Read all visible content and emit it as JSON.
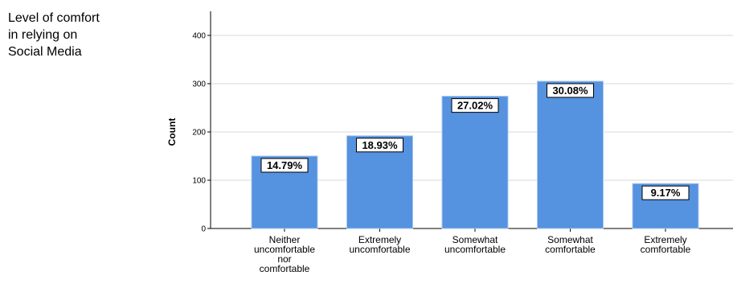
{
  "chart_data": {
    "type": "bar",
    "title_lines": [
      "Level of comfort",
      "in relying on",
      "Social Media"
    ],
    "ylabel": "Count",
    "xlabel": "",
    "ylim": [
      0,
      450
    ],
    "yticks": [
      0,
      100,
      200,
      300,
      400
    ],
    "grid": true,
    "categories": [
      [
        "Neither",
        "uncomfortable",
        "nor",
        "comfortable"
      ],
      [
        "Extremely",
        "uncomfortable"
      ],
      [
        "Somewhat",
        "uncomfortable"
      ],
      [
        "Somewhat",
        "comfortable"
      ],
      [
        "Extremely",
        "comfortable"
      ]
    ],
    "values": [
      150,
      192,
      274,
      305,
      93
    ],
    "data_labels": [
      "14.79%",
      "18.93%",
      "27.02%",
      "30.08%",
      "9.17%"
    ],
    "bar_color": "#5592e0",
    "bar_edge_color": "#a8c6ee",
    "grid_color": "#d9d9d9"
  }
}
